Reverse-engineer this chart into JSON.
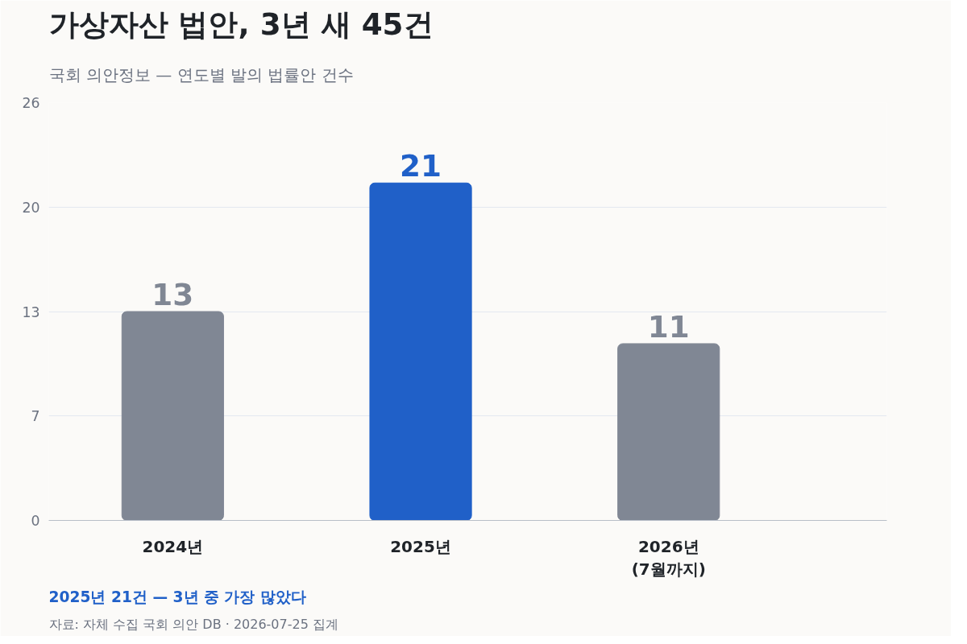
{
  "chart_data": {
    "type": "bar",
    "title": "가상자산 법안, 3년 새 45건",
    "subtitle": "국회 의안정보 — 연도별 발의 법률안 건수",
    "categories": [
      "2024년",
      "2025년",
      "2026년\n(7월까지)"
    ],
    "values": [
      13,
      21,
      11
    ],
    "colors": [
      "#808794",
      "#2060c8",
      "#808794"
    ],
    "data_labels": true,
    "ylim": [
      0,
      26
    ],
    "yticks": [
      0,
      {
        "value": 6.5,
        "label": "7"
      },
      13,
      {
        "value": 19.5,
        "label": "20"
      },
      26
    ],
    "grid": "y",
    "annotations": [
      "2025년 21건 — 3년 중 가장 많았다",
      "자료: 자체 수집 국회 의안 DB · 2026-07-25 집계"
    ]
  }
}
